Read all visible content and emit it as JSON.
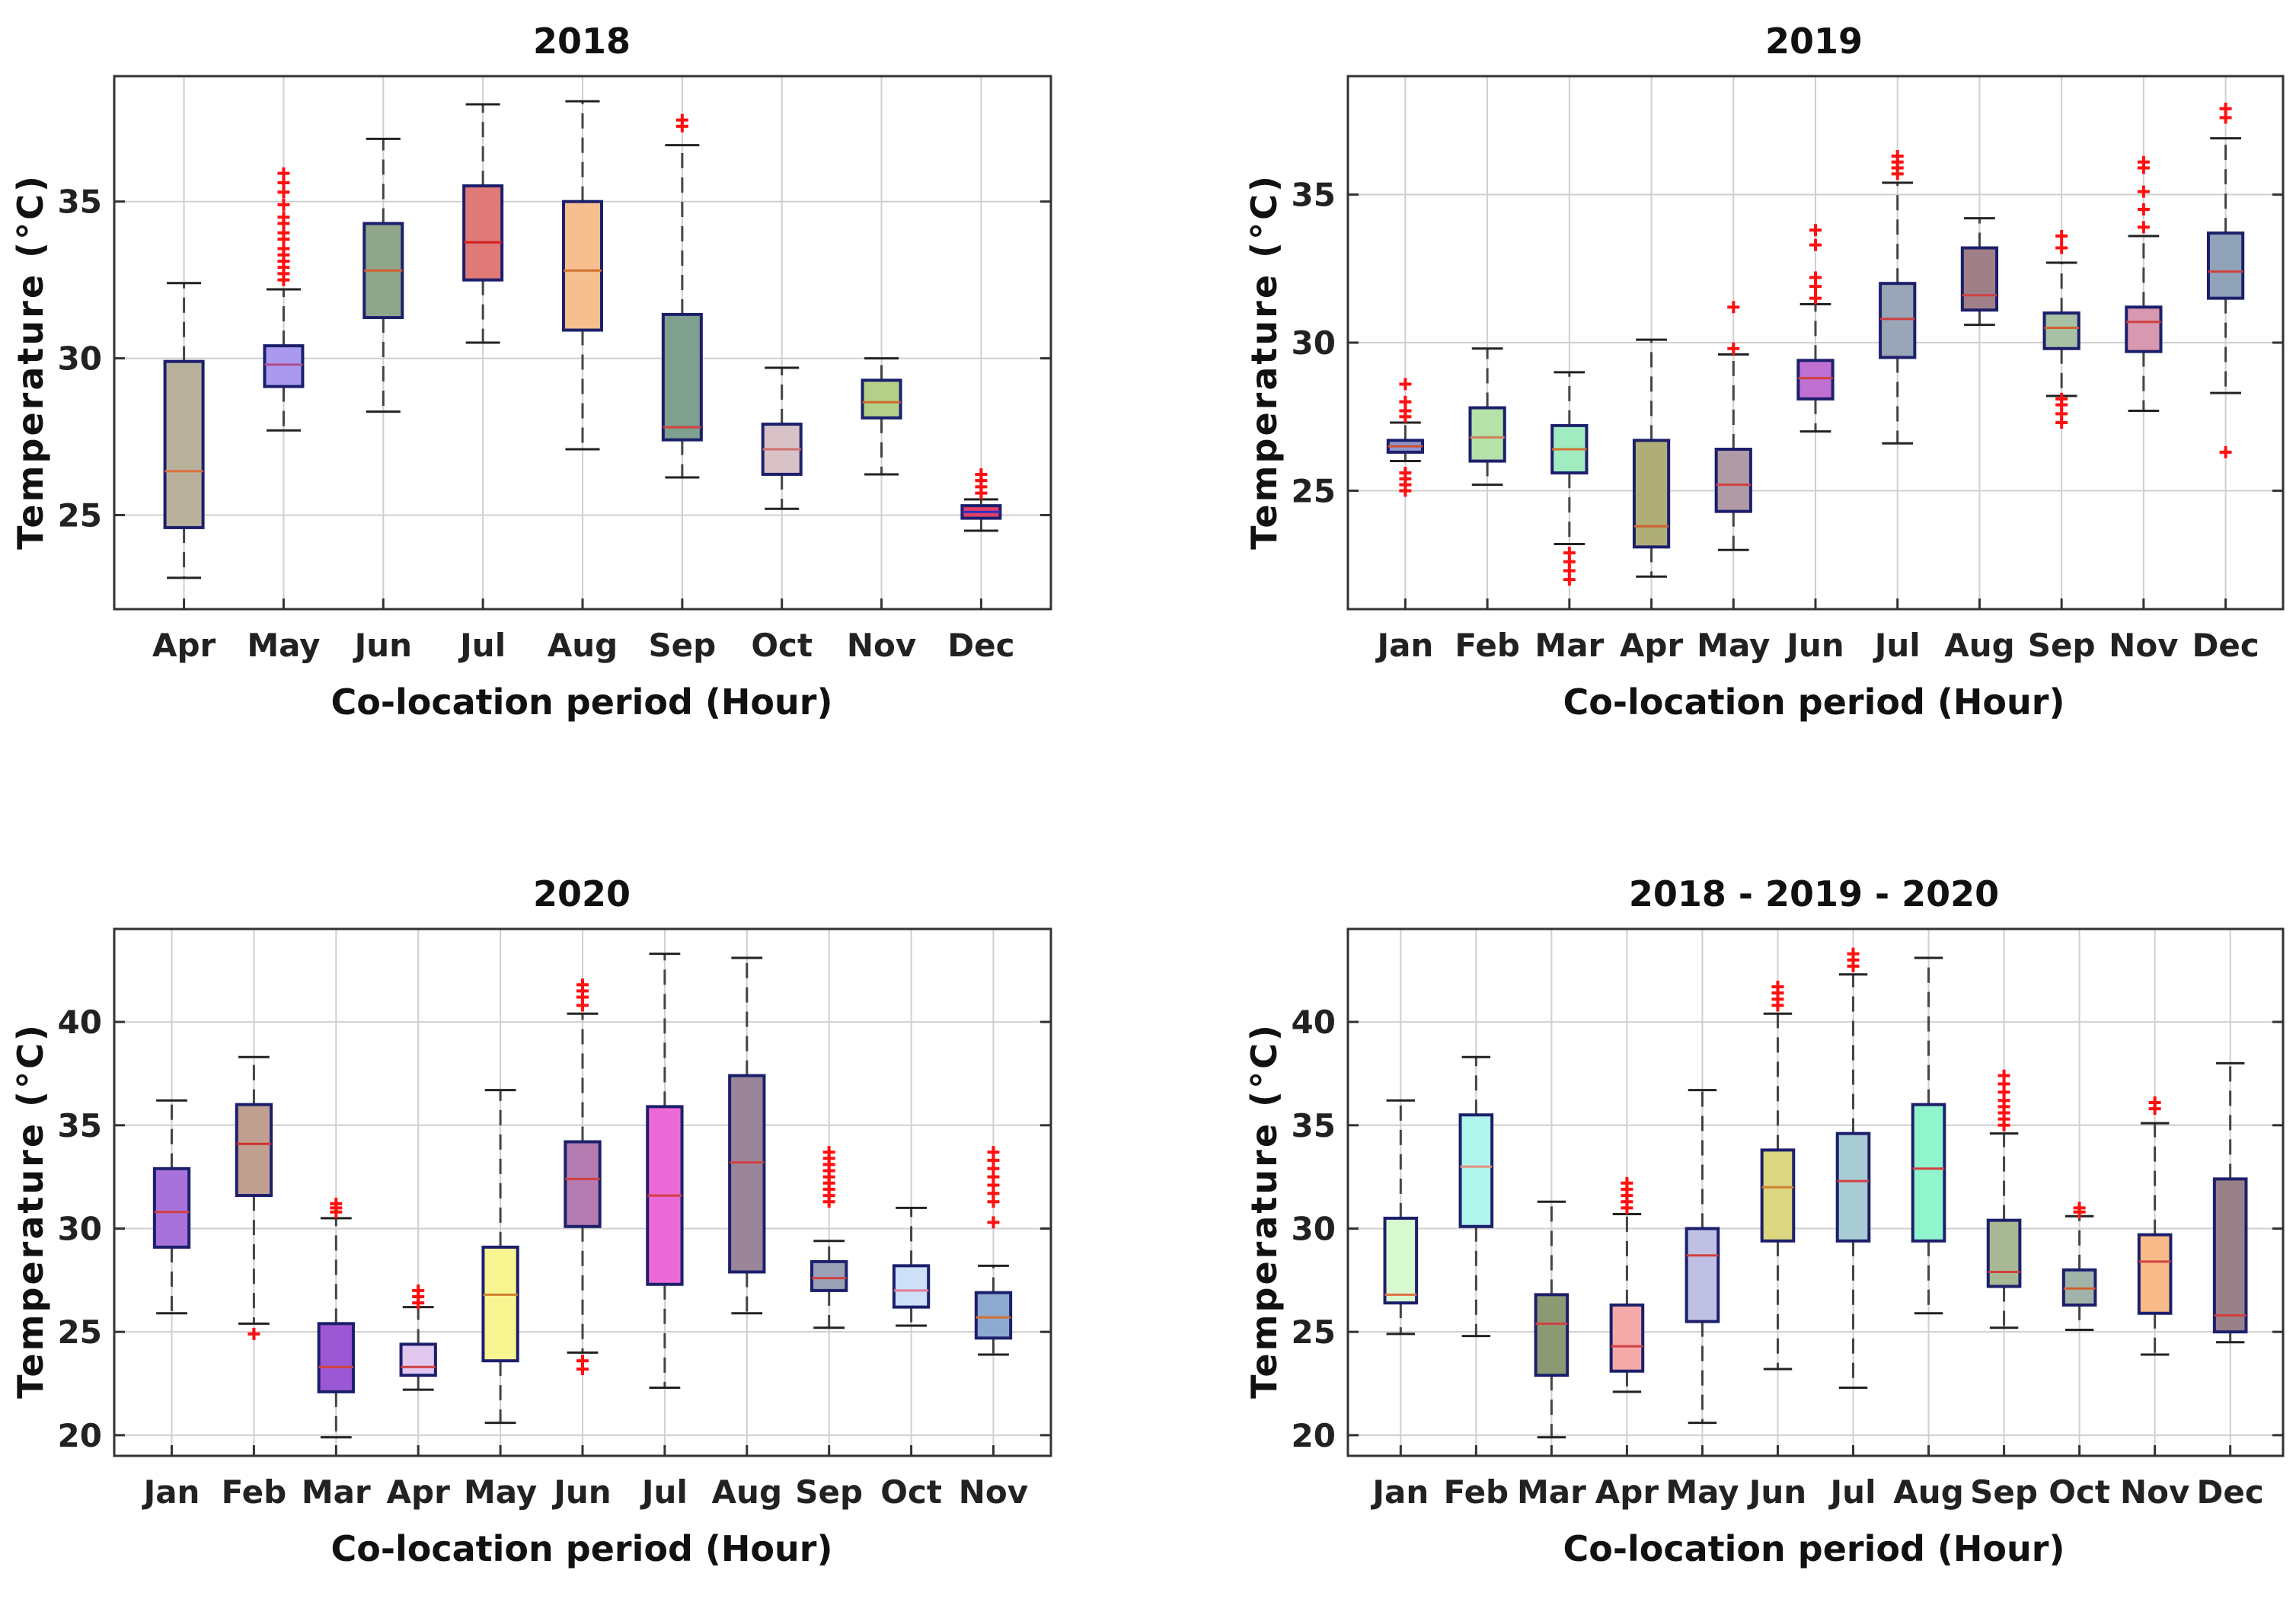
{
  "figure": {
    "ylabel": "Temperature (°C)",
    "xlabel": "Co-location period (Hour)"
  },
  "chart_data": [
    {
      "type": "box",
      "title": "2018",
      "ylim": [
        22,
        39
      ],
      "yticks": [
        25,
        30,
        35
      ],
      "categories": [
        "Apr",
        "May",
        "Jun",
        "Jul",
        "Aug",
        "Sep",
        "Oct",
        "Nov",
        "Dec"
      ],
      "boxes": [
        {
          "label": "Apr",
          "min": 23.0,
          "q1": 24.6,
          "median": 26.4,
          "q3": 29.9,
          "max": 32.4,
          "color": "#b8b29c",
          "median_color": "#e07040",
          "outliers": []
        },
        {
          "label": "May",
          "min": 27.7,
          "q1": 29.1,
          "median": 29.8,
          "q3": 30.4,
          "max": 32.2,
          "color": "#a99af0",
          "median_color": "#b04c8c",
          "outliers": [
            32.5,
            32.7,
            32.9,
            33.1,
            33.3,
            33.5,
            33.8,
            34.0,
            34.3,
            34.5,
            34.9,
            35.3,
            35.6,
            35.9
          ]
        },
        {
          "label": "Jun",
          "min": 28.3,
          "q1": 31.3,
          "median": 32.8,
          "q3": 34.3,
          "max": 37.0,
          "color": "#8fa68a",
          "median_color": "#d06030",
          "outliers": []
        },
        {
          "label": "Jul",
          "min": 30.5,
          "q1": 32.5,
          "median": 33.7,
          "q3": 35.5,
          "max": 38.1,
          "color": "#e07a78",
          "median_color": "#d02020",
          "outliers": []
        },
        {
          "label": "Aug",
          "min": 27.1,
          "q1": 30.9,
          "median": 32.8,
          "q3": 35.0,
          "max": 38.2,
          "color": "#f5bf90",
          "median_color": "#d07030",
          "outliers": []
        },
        {
          "label": "Sep",
          "min": 26.2,
          "q1": 27.4,
          "median": 27.8,
          "q3": 31.4,
          "max": 36.8,
          "color": "#7fa08e",
          "median_color": "#d04040",
          "outliers": [
            37.4,
            37.6
          ]
        },
        {
          "label": "Oct",
          "min": 25.2,
          "q1": 26.3,
          "median": 27.1,
          "q3": 27.9,
          "max": 29.7,
          "color": "#d8c2c8",
          "median_color": "#d07070",
          "outliers": []
        },
        {
          "label": "Nov",
          "min": 26.3,
          "q1": 28.1,
          "median": 28.6,
          "q3": 29.3,
          "max": 30.0,
          "color": "#b4d088",
          "median_color": "#d06830",
          "outliers": []
        },
        {
          "label": "Dec",
          "min": 24.5,
          "q1": 24.9,
          "median": 25.1,
          "q3": 25.3,
          "max": 25.5,
          "color": "#e03f6a",
          "median_color": "#3030c0",
          "outliers": [
            25.7,
            25.9,
            26.1,
            26.3
          ]
        }
      ]
    },
    {
      "type": "box",
      "title": "2019",
      "ylim": [
        21,
        39
      ],
      "yticks": [
        25,
        30,
        35
      ],
      "categories": [
        "Jan",
        "Feb",
        "Mar",
        "Apr",
        "May",
        "Jun",
        "Jul",
        "Aug",
        "Sep",
        "Nov",
        "Dec"
      ],
      "boxes": [
        {
          "label": "Jan",
          "min": 26.0,
          "q1": 26.3,
          "median": 26.5,
          "q3": 26.7,
          "max": 27.3,
          "color": "#8e96cc",
          "median_color": "#d05030",
          "outliers": [
            25.0,
            25.2,
            25.4,
            25.6,
            27.5,
            27.7,
            28.0,
            28.6
          ]
        },
        {
          "label": "Feb",
          "min": 25.2,
          "q1": 26.0,
          "median": 26.8,
          "q3": 27.8,
          "max": 29.8,
          "color": "#b4e2a8",
          "median_color": "#d08060",
          "outliers": []
        },
        {
          "label": "Mar",
          "min": 23.2,
          "q1": 25.6,
          "median": 26.4,
          "q3": 27.2,
          "max": 29.0,
          "color": "#a0ecc0",
          "median_color": "#d07030",
          "outliers": [
            22.0,
            22.3,
            22.6,
            22.9
          ]
        },
        {
          "label": "Apr",
          "min": 22.1,
          "q1": 23.1,
          "median": 23.8,
          "q3": 26.7,
          "max": 30.1,
          "color": "#b0ae78",
          "median_color": "#d06030",
          "outliers": []
        },
        {
          "label": "May",
          "min": 23.0,
          "q1": 24.3,
          "median": 25.2,
          "q3": 26.4,
          "max": 29.6,
          "color": "#b09aa6",
          "median_color": "#d04040",
          "outliers": [
            29.8,
            31.2
          ]
        },
        {
          "label": "Jun",
          "min": 27.0,
          "q1": 28.1,
          "median": 28.8,
          "q3": 29.4,
          "max": 31.3,
          "color": "#c070d0",
          "median_color": "#d04040",
          "outliers": [
            31.5,
            31.9,
            32.2,
            33.3,
            33.8
          ]
        },
        {
          "label": "Jul",
          "min": 26.6,
          "q1": 29.5,
          "median": 30.8,
          "q3": 32.0,
          "max": 35.4,
          "color": "#98a6b8",
          "median_color": "#d04040",
          "outliers": [
            35.7,
            35.9,
            36.1,
            36.3
          ]
        },
        {
          "label": "Aug",
          "min": 30.6,
          "q1": 31.1,
          "median": 31.6,
          "q3": 33.2,
          "max": 34.2,
          "color": "#a08088",
          "median_color": "#d04040",
          "outliers": []
        },
        {
          "label": "Sep",
          "min": 28.2,
          "q1": 29.8,
          "median": 30.5,
          "q3": 31.0,
          "max": 32.7,
          "color": "#a8c0a4",
          "median_color": "#d06030",
          "outliers": [
            27.3,
            27.6,
            27.9,
            28.1,
            33.2,
            33.6
          ]
        },
        {
          "label": "Nov",
          "min": 27.7,
          "q1": 29.7,
          "median": 30.7,
          "q3": 31.2,
          "max": 33.6,
          "color": "#d898b0",
          "median_color": "#d04040",
          "outliers": [
            33.9,
            34.5,
            35.1,
            35.9,
            36.1
          ]
        },
        {
          "label": "Dec",
          "min": 28.3,
          "q1": 31.5,
          "median": 32.4,
          "q3": 33.7,
          "max": 36.9,
          "color": "#90a2b8",
          "median_color": "#d04040",
          "outliers": [
            26.3,
            37.6,
            37.9
          ]
        }
      ]
    },
    {
      "type": "box",
      "title": "2020",
      "ylim": [
        19,
        44.5
      ],
      "yticks": [
        20,
        25,
        30,
        35,
        40
      ],
      "categories": [
        "Jan",
        "Feb",
        "Mar",
        "Apr",
        "May",
        "Jun",
        "Jul",
        "Aug",
        "Sep",
        "Oct",
        "Nov"
      ],
      "boxes": [
        {
          "label": "Jan",
          "min": 25.9,
          "q1": 29.1,
          "median": 30.8,
          "q3": 32.9,
          "max": 36.2,
          "color": "#a872dc",
          "median_color": "#d04040",
          "outliers": []
        },
        {
          "label": "Feb",
          "min": 25.4,
          "q1": 31.6,
          "median": 34.1,
          "q3": 36.0,
          "max": 38.3,
          "color": "#c0a090",
          "median_color": "#d03030",
          "outliers": [
            24.9
          ]
        },
        {
          "label": "Mar",
          "min": 19.9,
          "q1": 22.1,
          "median": 23.3,
          "q3": 25.4,
          "max": 30.5,
          "color": "#9c58d4",
          "median_color": "#d04040",
          "outliers": [
            30.8,
            31.0,
            31.2
          ]
        },
        {
          "label": "Apr",
          "min": 22.2,
          "q1": 22.9,
          "median": 23.3,
          "q3": 24.4,
          "max": 26.2,
          "color": "#e2c8ee",
          "median_color": "#d04040",
          "outliers": [
            26.4,
            26.7,
            27.0
          ]
        },
        {
          "label": "May",
          "min": 20.6,
          "q1": 23.6,
          "median": 26.8,
          "q3": 29.1,
          "max": 36.7,
          "color": "#f8f490",
          "median_color": "#d08030",
          "outliers": []
        },
        {
          "label": "Jun",
          "min": 24.0,
          "q1": 30.1,
          "median": 32.4,
          "q3": 34.2,
          "max": 40.4,
          "color": "#b47cb0",
          "median_color": "#d04040",
          "outliers": [
            23.2,
            23.6,
            40.8,
            41.2,
            41.5,
            41.8
          ]
        },
        {
          "label": "Jul",
          "min": 22.3,
          "q1": 27.3,
          "median": 31.6,
          "q3": 35.9,
          "max": 43.3,
          "color": "#ec6ad8",
          "median_color": "#d04040",
          "outliers": []
        },
        {
          "label": "Aug",
          "min": 25.9,
          "q1": 27.9,
          "median": 33.2,
          "q3": 37.4,
          "max": 43.1,
          "color": "#9a8698",
          "median_color": "#d04040",
          "outliers": []
        },
        {
          "label": "Sep",
          "min": 25.2,
          "q1": 27.0,
          "median": 27.6,
          "q3": 28.4,
          "max": 29.4,
          "color": "#9aa0b6",
          "median_color": "#d04040",
          "outliers": [
            31.3,
            31.6,
            31.9,
            32.2,
            32.5,
            32.8,
            33.1,
            33.4,
            33.7
          ]
        },
        {
          "label": "Oct",
          "min": 25.3,
          "q1": 26.2,
          "median": 27.0,
          "q3": 28.2,
          "max": 31.0,
          "color": "#cee0f8",
          "median_color": "#e07a9a",
          "outliers": []
        },
        {
          "label": "Nov",
          "min": 23.9,
          "q1": 24.7,
          "median": 25.7,
          "q3": 26.9,
          "max": 28.2,
          "color": "#8caad0",
          "median_color": "#d07030",
          "outliers": [
            30.3,
            31.3,
            31.7,
            32.1,
            32.5,
            32.9,
            33.3,
            33.7
          ]
        }
      ]
    },
    {
      "type": "box",
      "title": "2018 - 2019 - 2020",
      "ylim": [
        19,
        44.5
      ],
      "yticks": [
        20,
        25,
        30,
        35,
        40
      ],
      "categories": [
        "Jan",
        "Feb",
        "Mar",
        "Apr",
        "May",
        "Jun",
        "Jul",
        "Aug",
        "Sep",
        "Oct",
        "Nov",
        "Dec"
      ],
      "boxes": [
        {
          "label": "Jan",
          "min": 24.9,
          "q1": 26.4,
          "median": 26.8,
          "q3": 30.5,
          "max": 36.2,
          "color": "#d8f8d0",
          "median_color": "#e07040",
          "outliers": []
        },
        {
          "label": "Feb",
          "min": 24.8,
          "q1": 30.1,
          "median": 33.0,
          "q3": 35.5,
          "max": 38.3,
          "color": "#b0f4ee",
          "median_color": "#e09080",
          "outliers": []
        },
        {
          "label": "Mar",
          "min": 19.9,
          "q1": 22.9,
          "median": 25.4,
          "q3": 26.8,
          "max": 31.3,
          "color": "#8c9a74",
          "median_color": "#d04040",
          "outliers": []
        },
        {
          "label": "Apr",
          "min": 22.1,
          "q1": 23.1,
          "median": 24.3,
          "q3": 26.3,
          "max": 30.7,
          "color": "#f4aaa8",
          "median_color": "#d04040",
          "outliers": [
            31.0,
            31.3,
            31.6,
            31.9,
            32.2
          ]
        },
        {
          "label": "May",
          "min": 20.6,
          "q1": 25.5,
          "median": 28.7,
          "q3": 30.0,
          "max": 36.7,
          "color": "#c0c0e4",
          "median_color": "#d04040",
          "outliers": []
        },
        {
          "label": "Jun",
          "min": 23.2,
          "q1": 29.4,
          "median": 32.0,
          "q3": 33.8,
          "max": 40.4,
          "color": "#dcd680",
          "median_color": "#d08030",
          "outliers": [
            40.8,
            41.1,
            41.4,
            41.7
          ]
        },
        {
          "label": "Jul",
          "min": 22.3,
          "q1": 29.4,
          "median": 32.3,
          "q3": 34.6,
          "max": 42.3,
          "color": "#a8ccd4",
          "median_color": "#d04040",
          "outliers": [
            42.7,
            43.0,
            43.3
          ]
        },
        {
          "label": "Aug",
          "min": 25.9,
          "q1": 29.4,
          "median": 32.9,
          "q3": 36.0,
          "max": 43.1,
          "color": "#90f4cc",
          "median_color": "#d04040",
          "outliers": []
        },
        {
          "label": "Sep",
          "min": 25.2,
          "q1": 27.2,
          "median": 27.9,
          "q3": 30.4,
          "max": 34.6,
          "color": "#a8b894",
          "median_color": "#d04040",
          "outliers": [
            35.0,
            35.3,
            35.6,
            35.9,
            36.2,
            36.6,
            37.0,
            37.4
          ]
        },
        {
          "label": "Oct",
          "min": 25.1,
          "q1": 26.3,
          "median": 27.1,
          "q3": 28.0,
          "max": 30.6,
          "color": "#a0b4aa",
          "median_color": "#d06030",
          "outliers": [
            30.8,
            31.0
          ]
        },
        {
          "label": "Nov",
          "min": 23.9,
          "q1": 25.9,
          "median": 28.4,
          "q3": 29.7,
          "max": 35.1,
          "color": "#f8ba88",
          "median_color": "#d04040",
          "outliers": [
            35.8,
            36.1
          ]
        },
        {
          "label": "Dec",
          "min": 24.5,
          "q1": 25.0,
          "median": 25.8,
          "q3": 32.4,
          "max": 38.0,
          "color": "#988088",
          "median_color": "#d04040",
          "outliers": []
        }
      ]
    }
  ]
}
